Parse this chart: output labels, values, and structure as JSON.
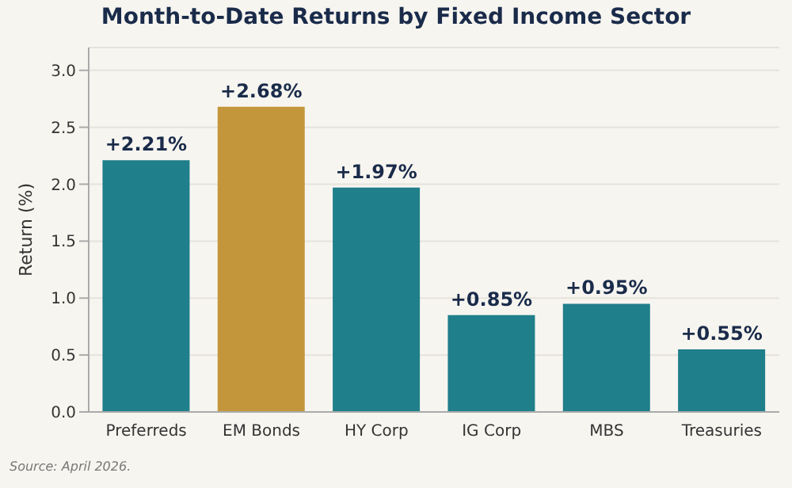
{
  "chart_data": {
    "type": "bar",
    "title": "Month-to-Date Returns by Fixed Income Sector",
    "ylabel": "Return (%)",
    "categories": [
      "Preferreds",
      "EM Bonds",
      "HY Corp",
      "IG Corp",
      "MBS",
      "Treasuries"
    ],
    "values": [
      2.21,
      2.68,
      1.97,
      0.85,
      0.95,
      0.55
    ],
    "colors": [
      "#1f7f8a",
      "#c4963c",
      "#1f7f8a",
      "#1f7f8a",
      "#1f7f8a",
      "#1f7f8a"
    ],
    "value_labels": [
      "+2.21%",
      "+2.68%",
      "+1.97%",
      "+0.85%",
      "+0.95%",
      "+0.55%"
    ],
    "ylim": [
      0,
      3.2
    ],
    "yticks": [
      {
        "value": 0,
        "label": "0.0"
      },
      {
        "value": 0.5,
        "label": "0.5"
      },
      {
        "value": 1,
        "label": "1.0"
      },
      {
        "value": 1.5,
        "label": "1.5"
      },
      {
        "value": 2,
        "label": "2.0"
      },
      {
        "value": 2.5,
        "label": "2.5"
      },
      {
        "value": 3,
        "label": "3.0"
      }
    ],
    "grid": "y",
    "annotations": [
      "Source: April 2026."
    ]
  }
}
